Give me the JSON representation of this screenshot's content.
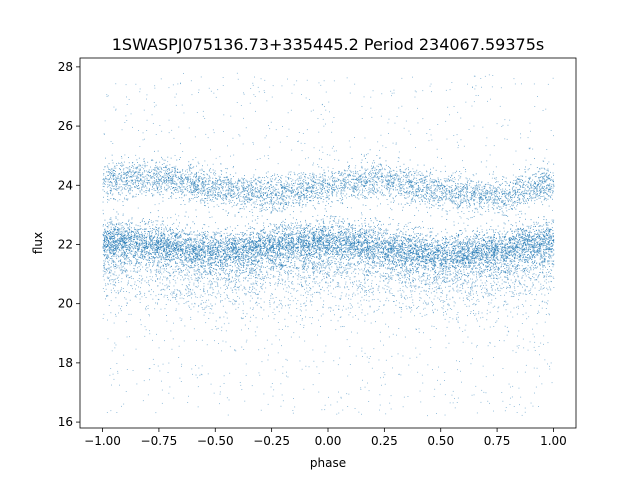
{
  "chart_data": {
    "type": "scatter",
    "title": "1SWASPJ075136.73+335445.2 Period 234067.59375s",
    "xlabel": "phase",
    "ylabel": "flux",
    "xlim": [
      -1.1,
      1.1
    ],
    "ylim": [
      15.8,
      28.3
    ],
    "xticks": [
      -1.0,
      -0.75,
      -0.5,
      -0.25,
      0.0,
      0.25,
      0.5,
      0.75,
      1.0
    ],
    "xtick_labels": [
      "−1.00",
      "−0.75",
      "−0.50",
      "−0.25",
      "0.00",
      "0.25",
      "0.50",
      "0.75",
      "1.00"
    ],
    "yticks": [
      16,
      18,
      20,
      22,
      24,
      26,
      28
    ],
    "ytick_labels": [
      "16",
      "18",
      "20",
      "22",
      "24",
      "26",
      "28"
    ],
    "grid": false,
    "marker_color": "#1f77b4",
    "series": [
      {
        "description_points": "dense phase-folded light curve, two bands",
        "band_lower": {
          "phase": [
            -1.0,
            -0.75,
            -0.5,
            -0.25,
            0.0,
            0.25,
            0.5,
            0.75,
            1.0
          ],
          "flux": [
            22.1,
            22.0,
            21.7,
            21.9,
            22.1,
            21.9,
            21.6,
            21.8,
            22.1
          ]
        },
        "band_upper": {
          "phase": [
            -1.0,
            -0.75,
            -0.5,
            -0.25,
            0.0,
            0.25,
            0.5,
            0.75,
            1.0
          ],
          "flux": [
            24.2,
            24.3,
            23.9,
            23.7,
            24.0,
            24.2,
            23.8,
            23.6,
            24.1
          ]
        }
      }
    ]
  }
}
